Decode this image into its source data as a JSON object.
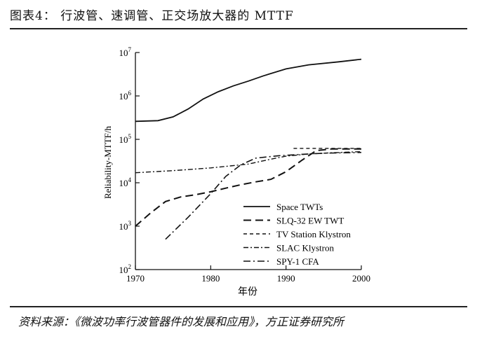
{
  "header": {
    "title": "图表4：  行波管、速调管、正交场放大器的 MTTF"
  },
  "footer": {
    "source": "资料来源：《微波功率行波管器件的发展和应用》，方正证券研究所"
  },
  "chart_data": {
    "type": "line",
    "title": "",
    "xlabel": "年份",
    "ylabel": "Reliability-MTTF/h",
    "xlim": [
      1970,
      2000
    ],
    "ylim": [
      100,
      10000000
    ],
    "yscale": "log",
    "xticks": [
      "1970",
      "1980",
      "1990",
      "2000"
    ],
    "yticks": [
      {
        "base": "10",
        "exp": "2",
        "value": 100
      },
      {
        "base": "10",
        "exp": "3",
        "value": 1000
      },
      {
        "base": "10",
        "exp": "4",
        "value": 10000
      },
      {
        "base": "10",
        "exp": "5",
        "value": 100000
      },
      {
        "base": "10",
        "exp": "6",
        "value": 1000000
      },
      {
        "base": "10",
        "exp": "7",
        "value": 10000000
      }
    ],
    "grid": false,
    "legend_position": "bottom-right",
    "series": [
      {
        "name": "Space TWTs",
        "style": "solid",
        "points": [
          [
            1970,
            260000
          ],
          [
            1973,
            270000
          ],
          [
            1975,
            330000
          ],
          [
            1977,
            500000
          ],
          [
            1979,
            850000
          ],
          [
            1981,
            1250000
          ],
          [
            1983,
            1700000
          ],
          [
            1985,
            2200000
          ],
          [
            1987,
            2900000
          ],
          [
            1990,
            4200000
          ],
          [
            1993,
            5200000
          ],
          [
            1997,
            6100000
          ],
          [
            2000,
            7000000
          ]
        ]
      },
      {
        "name": "SLQ-32 EW TWT",
        "style": "long-dash",
        "points": [
          [
            1970,
            1000
          ],
          [
            1972,
            2000
          ],
          [
            1974,
            3700
          ],
          [
            1976,
            4700
          ],
          [
            1978,
            5300
          ],
          [
            1980,
            6200
          ],
          [
            1982,
            7500
          ],
          [
            1984,
            9000
          ],
          [
            1986,
            10500
          ],
          [
            1988,
            12000
          ],
          [
            1990,
            18000
          ],
          [
            1992,
            32000
          ],
          [
            1994,
            55000
          ],
          [
            1996,
            60000
          ],
          [
            2000,
            60000
          ]
        ]
      },
      {
        "name": "TV Station Klystron",
        "style": "short-dash",
        "points": [
          [
            1991,
            62000
          ],
          [
            2000,
            62000
          ]
        ]
      },
      {
        "name": "SLAC Klystron",
        "style": "dash-dot",
        "points": [
          [
            1970,
            17000
          ],
          [
            1975,
            19000
          ],
          [
            1980,
            22000
          ],
          [
            1985,
            27000
          ],
          [
            1988,
            35000
          ],
          [
            1990,
            41000
          ],
          [
            1993,
            46000
          ],
          [
            1996,
            49000
          ],
          [
            2000,
            52000
          ]
        ]
      },
      {
        "name": "SPY-1 CFA",
        "style": "dash-dot-long",
        "points": [
          [
            1974,
            500
          ],
          [
            1977,
            1600
          ],
          [
            1980,
            5600
          ],
          [
            1982,
            14000
          ],
          [
            1984,
            26000
          ],
          [
            1986,
            37000
          ],
          [
            1989,
            42000
          ],
          [
            1992,
            45000
          ],
          [
            1995,
            48000
          ],
          [
            2000,
            50000
          ]
        ]
      }
    ]
  }
}
